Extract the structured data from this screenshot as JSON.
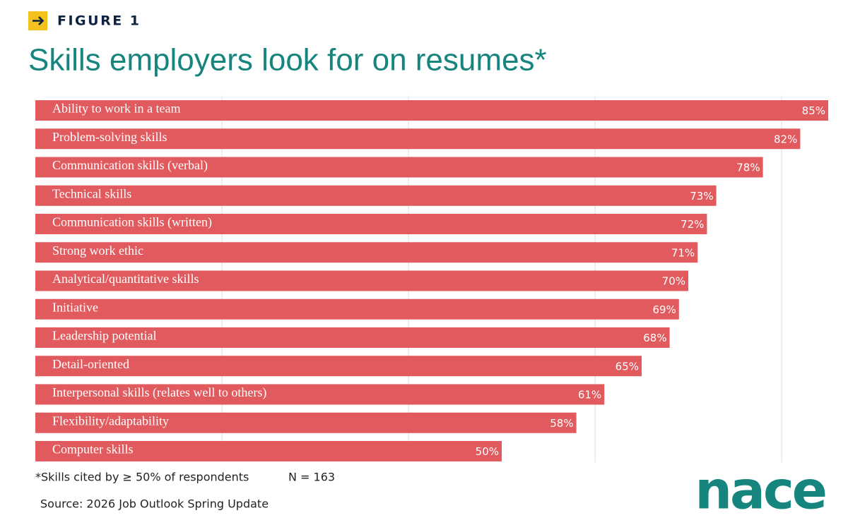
{
  "header": {
    "figure_label": "FIGURE 1"
  },
  "chart_data": {
    "type": "bar",
    "orientation": "horizontal",
    "title": "Skills employers look for on resumes*",
    "categories": [
      "Ability to work in a team",
      "Problem-solving skills",
      "Communication skills (verbal)",
      "Technical skills",
      "Communication skills (written)",
      "Strong work ethic",
      "Analytical/quantitative skills",
      "Initiative",
      "Leadership potential",
      "Detail-oriented",
      "Interpersonal skills (relates well to others)",
      "Flexibility/adaptability",
      "Computer skills"
    ],
    "values": [
      85,
      82,
      78,
      73,
      72,
      71,
      70,
      69,
      68,
      65,
      61,
      58,
      50
    ],
    "value_labels": [
      "85%",
      "82%",
      "78%",
      "73%",
      "72%",
      "71%",
      "70%",
      "69%",
      "68%",
      "65%",
      "61%",
      "58%",
      "50%"
    ],
    "color": "#e05a5e",
    "xlim": [
      0,
      85
    ],
    "xticks": [
      20,
      40,
      60,
      80
    ],
    "grid": true
  },
  "footer": {
    "footnote": "*Skills cited by ≥ 50% of respondents",
    "sample": "N = 163",
    "source": "Source: 2026 Job Outlook Spring Update",
    "logo": "nace"
  }
}
